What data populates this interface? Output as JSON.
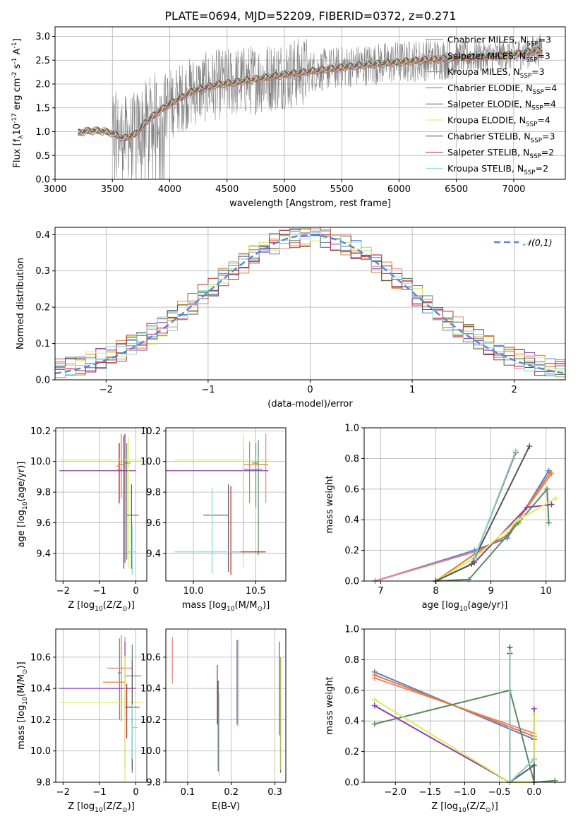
{
  "figure": {
    "title": "PLATE=0694, MJD=52209, FIBERID=0372, z=0.271"
  },
  "colors": {
    "series": [
      "#5b7fd1",
      "#e8867e",
      "#e07f2f",
      "#5a8a5e",
      "#8e3fa3",
      "#d8ee5c",
      "#555555",
      "#b52828",
      "#88d4d8"
    ],
    "spectrum_data": "#808080",
    "gaussian": "#5b87d6",
    "grid": "#b0b0b0"
  },
  "chart_data": [
    {
      "type": "line",
      "id": "spectrum",
      "title": "PLATE=0694, MJD=52209, FIBERID=0372, z=0.271",
      "xlabel": "wavelength [Angstrom, rest frame]",
      "ylabel": "Flux [f$_\\lambda$10$^{-17}$ erg cm$^{-2}$ s$^{-1}$ A$^{-1}$]",
      "xlim": [
        3000,
        7450
      ],
      "ylim": [
        0,
        3.2
      ],
      "xticks": [
        3000,
        3500,
        4000,
        4500,
        5000,
        5500,
        6000,
        6500,
        7000
      ],
      "yticks": [
        0.0,
        0.5,
        1.0,
        1.5,
        2.0,
        2.5,
        3.0
      ],
      "xtick_labels": [
        "3000",
        "3500",
        "4000",
        "4500",
        "5000",
        "5500",
        "6000",
        "6500",
        "7000"
      ],
      "ytick_labels": [
        "0.0",
        "0.5",
        "1.0",
        "1.5",
        "2.0",
        "2.5",
        "3.0"
      ],
      "grid": true,
      "legend": "upper right",
      "continuum": {
        "x": [
          3200,
          3300,
          3400,
          3500,
          3600,
          3700,
          3800,
          3900,
          4000,
          4200,
          4400,
          4600,
          4800,
          5000,
          5200,
          5400,
          5600,
          5800,
          6000,
          6200,
          6400,
          6600,
          6800,
          7000,
          7250
        ],
        "y": [
          0.98,
          1.02,
          1.02,
          0.97,
          0.86,
          0.95,
          1.22,
          1.42,
          1.58,
          1.85,
          1.98,
          2.05,
          2.12,
          2.2,
          2.26,
          2.32,
          2.38,
          2.42,
          2.46,
          2.5,
          2.53,
          2.56,
          2.58,
          2.62,
          2.72
        ]
      },
      "data_range": [
        3200,
        7250
      ],
      "series": [
        {
          "name": "Chabrier MILES, N$_{SSP}$=3",
          "color_index": 0
        },
        {
          "name": "Salpeter MILES, N$_{SSP}$=3",
          "color_index": 1
        },
        {
          "name": "Kroupa MILES, N$_{SSP}$=3",
          "color_index": 2
        },
        {
          "name": "Chabrier ELODIE, N$_{SSP}$=4",
          "color_index": 3
        },
        {
          "name": "Salpeter ELODIE, N$_{SSP}$=4",
          "color_index": 4
        },
        {
          "name": "Kroupa ELODIE, N$_{SSP}$=4",
          "color_index": 5
        },
        {
          "name": "Chabrier STELIB, N$_{SSP}$=3",
          "color_index": 6
        },
        {
          "name": "Salpeter STELIB, N$_{SSP}$=2",
          "color_index": 7
        },
        {
          "name": "Kroupa STELIB, N$_{SSP}$=2",
          "color_index": 8
        }
      ]
    },
    {
      "type": "line",
      "id": "residuals",
      "xlabel": "(data-model)/error",
      "ylabel": "Normed distribution",
      "xlim": [
        -2.5,
        2.5
      ],
      "ylim": [
        0.0,
        0.42
      ],
      "xticks": [
        -2,
        -1,
        0,
        1,
        2
      ],
      "yticks": [
        0.0,
        0.1,
        0.2,
        0.3,
        0.4
      ],
      "xtick_labels": [
        "−2",
        "−1",
        "0",
        "1",
        "2"
      ],
      "ytick_labels": [
        "0.0",
        "0.1",
        "0.2",
        "0.3",
        "0.4"
      ],
      "grid": true,
      "legend": "upper right",
      "bin_width": 0.1,
      "gaussian": {
        "name": "$\\mathcal{N}(0,1)$",
        "mean": 0,
        "sigma": 1
      }
    },
    {
      "type": "scatter",
      "id": "age-vs-z",
      "xlabel": "Z [log$_{10}$(Z/Z$_\\odot$)]",
      "ylabel": "age  [log$_{10}$(age/yr)]",
      "xlim": [
        -2.2,
        0.3
      ],
      "ylim": [
        9.22,
        10.22
      ],
      "xticks": [
        -2,
        -1,
        0
      ],
      "yticks": [
        9.4,
        9.6,
        9.8,
        10.0,
        10.2
      ],
      "xtick_labels": [
        "−2",
        "−1",
        "0"
      ],
      "ytick_labels": [
        "9.4",
        "9.6",
        "9.8",
        "10.0",
        "10.2"
      ],
      "grid": true,
      "crosses": [
        {
          "c": 0,
          "x": -0.45,
          "xerr": [
            0.05,
            0.05
          ],
          "y": 9.95,
          "yerr": [
            0.22,
            0.17
          ]
        },
        {
          "c": 1,
          "x": -0.47,
          "xerr": [
            0.08,
            0.0
          ],
          "y": 9.97,
          "yerr": [
            0.25,
            0.15
          ]
        },
        {
          "c": 2,
          "x": -0.4,
          "xerr": [
            0.1,
            0.05
          ],
          "y": 9.98,
          "yerr": [
            0.22,
            0.2
          ]
        },
        {
          "c": 3,
          "x": -0.25,
          "xerr": [
            0.05,
            0.1
          ],
          "y": 9.99,
          "yerr": [
            0.63,
            0.13
          ]
        },
        {
          "c": 4,
          "x": -0.3,
          "xerr": [
            1.8,
            0.3
          ],
          "y": 9.94,
          "yerr": [
            0.6,
            0.24
          ]
        },
        {
          "c": 5,
          "x": -0.2,
          "xerr": [
            1.9,
            0.4
          ],
          "y": 10.01,
          "yerr": [
            0.7,
            0.15
          ]
        },
        {
          "c": 6,
          "x": -0.12,
          "xerr": [
            0.12,
            0.2
          ],
          "y": 9.65,
          "yerr": [
            0.35,
            0.2
          ]
        },
        {
          "c": 7,
          "x": -0.33,
          "xerr": [
            0.0,
            0.0
          ],
          "y": 9.9,
          "yerr": [
            0.6,
            0.27
          ]
        },
        {
          "c": 8,
          "x": -0.1,
          "xerr": [
            0.15,
            0.1
          ],
          "y": 9.41,
          "yerr": [
            0.15,
            0.18
          ]
        }
      ]
    },
    {
      "type": "scatter",
      "id": "age-vs-mass",
      "xlabel": "mass [log$_{10}$(M/M$_\\odot$)]",
      "ylabel": "",
      "xlim": [
        9.78,
        10.74
      ],
      "ylim": [
        9.22,
        10.22
      ],
      "xticks": [
        10.0,
        10.5
      ],
      "yticks": [
        9.4,
        9.6,
        9.8,
        10.0,
        10.2
      ],
      "xtick_labels": [
        "10.0",
        "10.5"
      ],
      "ytick_labels": [
        "9.4",
        "9.6",
        "9.8",
        "10.0",
        "10.2"
      ],
      "grid": true,
      "crosses": [
        {
          "c": 0,
          "x": 10.5,
          "xerr": [
            0.1,
            0.05
          ],
          "y": 9.95,
          "yerr": [
            0.25,
            0.17
          ]
        },
        {
          "c": 1,
          "x": 10.58,
          "xerr": [
            0.05,
            0.0
          ],
          "y": 9.98,
          "yerr": [
            0.25,
            0.2
          ]
        },
        {
          "c": 2,
          "x": 10.45,
          "xerr": [
            0.05,
            0.15
          ],
          "y": 9.98,
          "yerr": [
            0.25,
            0.15
          ]
        },
        {
          "c": 3,
          "x": 10.52,
          "xerr": [
            0.05,
            0.0
          ],
          "y": 9.99,
          "yerr": [
            0.6,
            0.15
          ]
        },
        {
          "c": 4,
          "x": 10.4,
          "xerr": [
            0.7,
            0.2
          ],
          "y": 9.94,
          "yerr": [
            0.55,
            0.14
          ]
        },
        {
          "c": 5,
          "x": 10.4,
          "xerr": [
            0.55,
            0.22
          ],
          "y": 10.01,
          "yerr": [
            0.7,
            0.17
          ]
        },
        {
          "c": 6,
          "x": 10.28,
          "xerr": [
            0.2,
            0.0
          ],
          "y": 9.65,
          "yerr": [
            0.37,
            0.2
          ]
        },
        {
          "c": 7,
          "x": 10.3,
          "xerr": [
            0.0,
            0.28
          ],
          "y": 9.41,
          "yerr": [
            0.15,
            0.43
          ]
        },
        {
          "c": 8,
          "x": 10.15,
          "xerr": [
            0.3,
            0.23
          ],
          "y": 9.41,
          "yerr": [
            0.14,
            0.42
          ]
        }
      ]
    },
    {
      "type": "line",
      "id": "weight-vs-age",
      "xlabel": "age  [log$_{10}$(age/yr)]",
      "ylabel": "mass weight",
      "xlim": [
        6.7,
        10.35
      ],
      "ylim": [
        0.0,
        1.0
      ],
      "xticks": [
        7,
        8,
        9,
        10
      ],
      "yticks": [
        0.0,
        0.2,
        0.4,
        0.6,
        0.8,
        1.0
      ],
      "xtick_labels": [
        "7",
        "8",
        "9",
        "10"
      ],
      "ytick_labels": [
        "0.0",
        "0.2",
        "0.4",
        "0.6",
        "0.8",
        "1.0"
      ],
      "grid": true,
      "series": [
        {
          "c": 0,
          "x": [
            6.9,
            8.7,
            9.3,
            10.05
          ],
          "y": [
            0.0,
            0.2,
            0.28,
            0.72
          ]
        },
        {
          "c": 1,
          "x": [
            6.9,
            8.8,
            9.3,
            10.1
          ],
          "y": [
            0.0,
            0.2,
            0.3,
            0.7
          ]
        },
        {
          "c": 2,
          "x": [
            8.0,
            8.8,
            9.3,
            10.08
          ],
          "y": [
            0.0,
            0.2,
            0.3,
            0.71
          ]
        },
        {
          "c": 3,
          "x": [
            8.0,
            8.6,
            9.5,
            10.02,
            10.05
          ],
          "y": [
            0.0,
            0.01,
            0.38,
            0.6,
            0.38
          ]
        },
        {
          "c": 4,
          "x": [
            8.0,
            8.7,
            9.65,
            10.1
          ],
          "y": [
            0.0,
            0.12,
            0.48,
            0.5
          ]
        },
        {
          "c": 5,
          "x": [
            8.0,
            8.7,
            9.5,
            10.18
          ],
          "y": [
            0.0,
            0.15,
            0.4,
            0.54
          ]
        },
        {
          "c": 6,
          "x": [
            8.0,
            8.65,
            9.7
          ],
          "y": [
            0.0,
            0.11,
            0.88
          ]
        },
        {
          "c": 7,
          "x": [
            8.7,
            9.45
          ],
          "y": [
            0.15,
            0.84
          ]
        },
        {
          "c": 8,
          "x": [
            8.7,
            9.45
          ],
          "y": [
            0.15,
            0.85
          ]
        }
      ]
    },
    {
      "type": "scatter",
      "id": "mass-vs-z",
      "xlabel": "Z [log$_{10}$(Z/Z$_\\odot$)]",
      "ylabel": "mass [log$_{10}$(M/M$_\\odot$)]",
      "xlim": [
        -2.2,
        0.3
      ],
      "ylim": [
        9.8,
        10.78
      ],
      "xticks": [
        -2,
        -1,
        0
      ],
      "yticks": [
        9.8,
        10.0,
        10.2,
        10.4,
        10.6
      ],
      "xtick_labels": [
        "−2",
        "−1",
        "0"
      ],
      "ytick_labels": [
        "9.8",
        "10.0",
        "10.2",
        "10.4",
        "10.6"
      ],
      "grid": true,
      "crosses": [
        {
          "c": 0,
          "x": -0.45,
          "xerr": [
            0.05,
            0.05
          ],
          "y": 10.5,
          "yerr": [
            0.3,
            0.22
          ]
        },
        {
          "c": 1,
          "x": -0.3,
          "xerr": [
            0.5,
            0.2
          ],
          "y": 10.53,
          "yerr": [
            0.25,
            0.2
          ]
        },
        {
          "c": 2,
          "x": -0.4,
          "xerr": [
            0.5,
            0.1
          ],
          "y": 10.44,
          "yerr": [
            0.25,
            0.3
          ]
        },
        {
          "c": 3,
          "x": -0.1,
          "xerr": [
            0.2,
            0.25
          ],
          "y": 10.48,
          "yerr": [
            0.62,
            0.2
          ]
        },
        {
          "c": 4,
          "x": -0.3,
          "xerr": [
            1.8,
            0.3
          ],
          "y": 10.4,
          "yerr": [
            0.5,
            0.3
          ]
        },
        {
          "c": 5,
          "x": -0.3,
          "xerr": [
            1.8,
            0.5
          ],
          "y": 10.31,
          "yerr": [
            0.6,
            0.3
          ]
        },
        {
          "c": 6,
          "x": -0.1,
          "xerr": [
            0.1,
            0.2
          ],
          "y": 10.28,
          "yerr": [
            0.4,
            0.3
          ]
        },
        {
          "c": 7,
          "x": -0.25,
          "xerr": [
            0.05,
            0.15
          ],
          "y": 10.28,
          "yerr": [
            0.2,
            0.15
          ]
        },
        {
          "c": 8,
          "x": -0.1,
          "xerr": [
            0.0,
            0.15
          ],
          "y": 10.15,
          "yerr": [
            0.2,
            0.15
          ]
        }
      ]
    },
    {
      "type": "scatter",
      "id": "mass-vs-ebv",
      "xlabel": "E(B-V)",
      "ylabel": "",
      "xlim": [
        0.05,
        0.325
      ],
      "ylim": [
        9.8,
        10.78
      ],
      "xticks": [
        0.1,
        0.2,
        0.3
      ],
      "yticks": [
        9.8,
        10.0,
        10.2,
        10.4,
        10.6
      ],
      "xtick_labels": [
        "0.1",
        "0.2",
        "0.3"
      ],
      "ytick_labels": [
        "9.8",
        "10.0",
        "10.2",
        "10.4",
        "10.6"
      ],
      "grid": true,
      "vlines": [
        {
          "c": 0,
          "x": 0.213,
          "ymin": 10.17,
          "ymax": 10.71
        },
        {
          "c": 1,
          "x": 0.065,
          "ymin": 10.43,
          "ymax": 10.73
        },
        {
          "c": 2,
          "x": 0.215,
          "ymin": 10.16,
          "ymax": 10.71
        },
        {
          "c": 3,
          "x": 0.313,
          "ymin": 9.86,
          "ymax": 10.6
        },
        {
          "c": 4,
          "x": 0.31,
          "ymin": 10.1,
          "ymax": 10.7
        },
        {
          "c": 5,
          "x": 0.312,
          "ymin": 9.88,
          "ymax": 10.6
        },
        {
          "c": 6,
          "x": 0.17,
          "ymin": 9.87,
          "ymax": 10.45
        },
        {
          "c": 7,
          "x": 0.168,
          "ymin": 10.17,
          "ymax": 10.55
        },
        {
          "c": 8,
          "x": 0.172,
          "ymin": 9.84,
          "ymax": 10.37
        }
      ]
    },
    {
      "type": "line",
      "id": "weight-vs-z",
      "xlabel": "Z [log$_{10}$(Z/Z$_\\odot$)]",
      "ylabel": "mass weight",
      "xlim": [
        -2.45,
        0.45
      ],
      "ylim": [
        0.0,
        1.0
      ],
      "xticks": [
        -2.0,
        -1.5,
        -1.0,
        -0.5,
        0.0
      ],
      "yticks": [
        0.0,
        0.2,
        0.4,
        0.6,
        0.8,
        1.0
      ],
      "xtick_labels": [
        "−2.0",
        "−1.5",
        "−1.0",
        "−0.5",
        "0.0"
      ],
      "ytick_labels": [
        "0.0",
        "0.2",
        "0.4",
        "0.6",
        "0.8",
        "1.0"
      ],
      "grid": true,
      "series": [
        {
          "c": 0,
          "x": [
            -2.3,
            0.0
          ],
          "y": [
            0.72,
            0.28
          ]
        },
        {
          "c": 1,
          "x": [
            -2.3,
            0.0
          ],
          "y": [
            0.68,
            0.32
          ]
        },
        {
          "c": 2,
          "x": [
            -2.3,
            0.0
          ],
          "y": [
            0.7,
            0.3
          ]
        },
        {
          "c": 3,
          "x": [
            -2.3,
            -0.35,
            0.0,
            0.3
          ],
          "y": [
            0.38,
            0.6,
            0.0,
            0.01
          ]
        },
        {
          "c": 4,
          "x": [
            -2.3,
            -0.35,
            0.0,
            0.0
          ],
          "y": [
            0.5,
            0.0,
            0.0,
            0.48
          ]
        },
        {
          "c": 5,
          "x": [
            -2.3,
            -0.35,
            0.0,
            0.0
          ],
          "y": [
            0.54,
            0.0,
            0.0,
            0.44
          ]
        },
        {
          "c": 6,
          "x": [
            -0.35,
            -0.35,
            0.0,
            0.0
          ],
          "y": [
            0.88,
            0.0,
            0.11,
            0.0
          ]
        },
        {
          "c": 7,
          "x": [
            -0.35,
            -0.35,
            0.0
          ],
          "y": [
            0.84,
            0.0,
            0.15
          ]
        },
        {
          "c": 8,
          "x": [
            -0.35,
            -0.35,
            0.0
          ],
          "y": [
            0.85,
            0.0,
            0.15
          ]
        }
      ]
    }
  ]
}
